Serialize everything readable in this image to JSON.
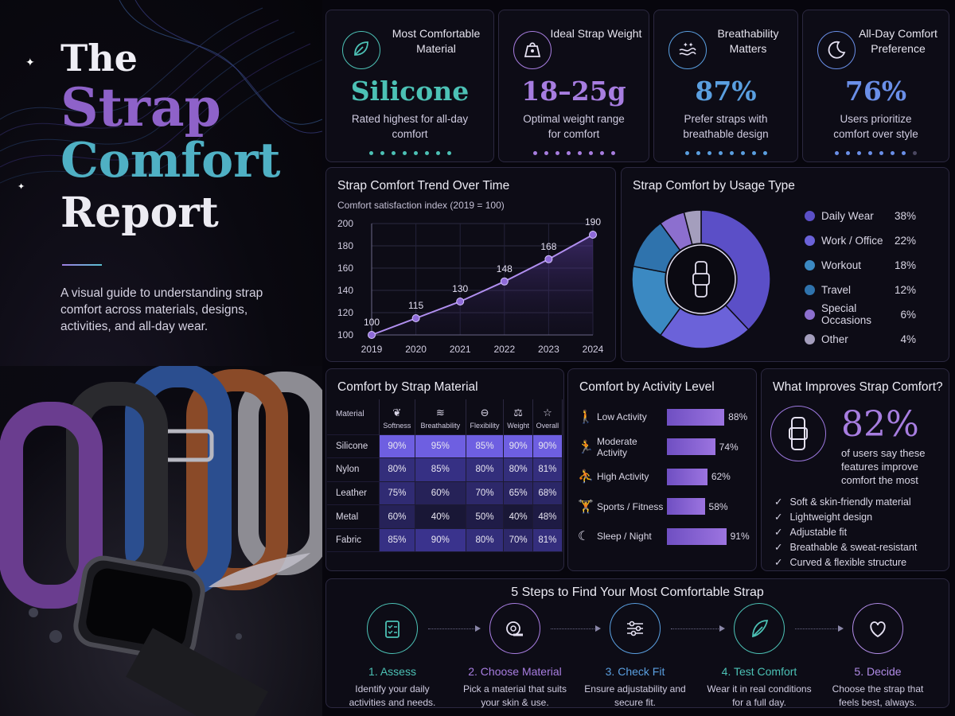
{
  "hero": {
    "title_line1": "The",
    "title_line2": "Strap",
    "title_line3": "Comfort",
    "title_line4": "Report",
    "intro": "A visual guide to understanding strap comfort across materials, designs, activities, and all-day wear."
  },
  "stats": [
    {
      "heading": "Most Comfortable Material",
      "value": "Silicone",
      "desc": "Rated highest for all-day comfort",
      "color": "#4cc1b5",
      "icon": "leaf-icon"
    },
    {
      "heading": "Ideal Strap Weight",
      "value": "18–25g",
      "desc": "Optimal weight range for comfort",
      "color": "#a77de0",
      "icon": "weight-icon"
    },
    {
      "heading": "Breathability Matters",
      "value": "87%",
      "desc": "Prefer straps with breathable design",
      "color": "#5a9fe0",
      "icon": "air-icon"
    },
    {
      "heading": "All-Day Comfort Preference",
      "value": "76%",
      "desc": "Users prioritize comfort over style",
      "color": "#6a8fe8",
      "icon": "moon-icon"
    }
  ],
  "chart_data": [
    {
      "type": "line",
      "title": "Strap Comfort Trend Over Time",
      "subtitle": "Comfort satisfaction index (2019 = 100)",
      "x": [
        "2019",
        "2020",
        "2021",
        "2022",
        "2023",
        "2024"
      ],
      "y": [
        100,
        115,
        130,
        148,
        168,
        190
      ],
      "ylim": [
        100,
        200
      ],
      "yticks": [
        100,
        120,
        140,
        160,
        180,
        200
      ],
      "grid": true
    },
    {
      "type": "pie",
      "title": "Strap Comfort by Usage Type",
      "labels": [
        "Daily Wear",
        "Work / Office",
        "Workout",
        "Travel",
        "Special Occasions",
        "Other"
      ],
      "values": [
        38,
        22,
        18,
        12,
        6,
        4
      ],
      "value_labels": [
        "38%",
        "22%",
        "18%",
        "12%",
        "6%",
        "4%"
      ],
      "colors": [
        "#5b4fc7",
        "#6b62d9",
        "#3b89c2",
        "#2f73ad",
        "#8c6fcf",
        "#a49ebd"
      ],
      "legend": "right"
    },
    {
      "type": "table",
      "title": "Comfort by Strap Material",
      "row_header": "Material",
      "columns": [
        "Softness",
        "Breathability",
        "Flexibility",
        "Weight",
        "Overall"
      ],
      "column_icons": [
        "❦",
        "≋",
        "⊖",
        "⚖",
        "☆"
      ],
      "rows": [
        {
          "name": "Silicone",
          "values": [
            "90%",
            "95%",
            "85%",
            "90%",
            "90%"
          ]
        },
        {
          "name": "Nylon",
          "values": [
            "80%",
            "85%",
            "80%",
            "80%",
            "81%"
          ]
        },
        {
          "name": "Leather",
          "values": [
            "75%",
            "60%",
            "70%",
            "65%",
            "68%"
          ]
        },
        {
          "name": "Metal",
          "values": [
            "60%",
            "40%",
            "50%",
            "40%",
            "48%"
          ]
        },
        {
          "name": "Fabric",
          "values": [
            "85%",
            "90%",
            "80%",
            "70%",
            "81%"
          ]
        }
      ]
    },
    {
      "type": "bar",
      "title": "Comfort by Activity Level",
      "categories": [
        "Low Activity",
        "Moderate Activity",
        "High Activity",
        "Sports / Fitness",
        "Sleep / Night"
      ],
      "values": [
        88,
        74,
        62,
        58,
        91
      ],
      "value_labels": [
        "88%",
        "74%",
        "62%",
        "58%",
        "91%"
      ],
      "icons": [
        "🚶",
        "🏃",
        "⛹",
        "🏋",
        "☾"
      ]
    }
  ],
  "improves": {
    "title": "What Improves Strap Comfort?",
    "value": "82%",
    "desc": "of users say these features improve comfort the most",
    "features": [
      "Soft & skin-friendly material",
      "Lightweight design",
      "Adjustable fit",
      "Breathable & sweat-resistant",
      "Curved & flexible structure"
    ]
  },
  "steps": {
    "title": "5 Steps to Find Your Most Comfortable Strap",
    "items": [
      {
        "name": "1. Assess",
        "desc": "Identify your daily activities and needs.",
        "color": "#4cc1b5",
        "icon": "clipboard-icon"
      },
      {
        "name": "2. Choose Material",
        "desc": "Pick a material that suits your skin & use.",
        "color": "#a77de0",
        "icon": "strap-roll-icon"
      },
      {
        "name": "3. Check Fit",
        "desc": "Ensure adjustability and secure fit.",
        "color": "#5a9fe0",
        "icon": "sliders-icon"
      },
      {
        "name": "4. Test Comfort",
        "desc": "Wear it in real conditions for a full day.",
        "color": "#4cc1b5",
        "icon": "feather-icon"
      },
      {
        "name": "5. Decide",
        "desc": "Choose the strap that feels best, always.",
        "color": "#b08be6",
        "icon": "heart-icon"
      }
    ]
  }
}
